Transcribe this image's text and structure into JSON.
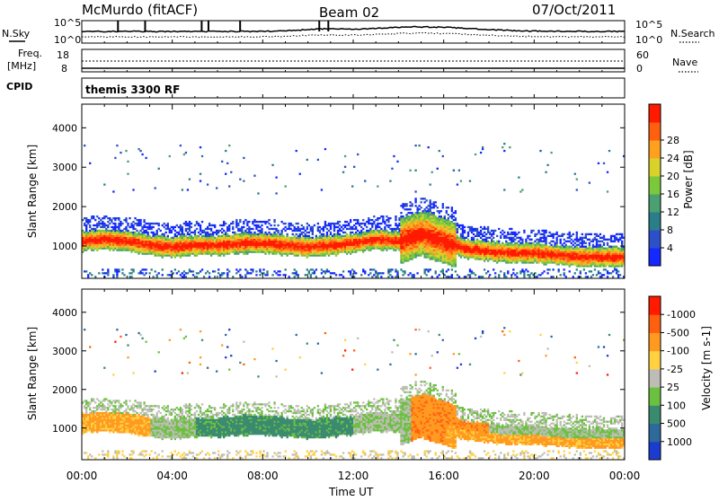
{
  "header": {
    "station": "McMurdo (fitACF)",
    "beam": "Beam 02",
    "date": "07/Oct/2011"
  },
  "aux": {
    "nsky_label": "N.Sky",
    "nsearch_label": "N.Search",
    "freq_label_1": "Freq.",
    "freq_label_2": "[MHz]",
    "cpid_label": "CPID",
    "nave_label": "Nave",
    "noise_ticks": [
      "10^5",
      "10^0"
    ],
    "noise_ticks_right": [
      "10^5",
      "10^0"
    ],
    "freq_ticks": [
      "18",
      "8"
    ],
    "nave_ticks": [
      "60",
      "0"
    ],
    "cpid_text": "themis 3300 RF"
  },
  "chart_data": [
    {
      "type": "heatmap",
      "title": "",
      "ylabel": "Slant Range [km]",
      "xlabel": "",
      "xlim": [
        0,
        24
      ],
      "ylim": [
        180,
        4600
      ],
      "y_ticks": [
        1000,
        2000,
        3000,
        4000
      ],
      "x_ticks": [
        0,
        4,
        8,
        12,
        16,
        20,
        24
      ],
      "colorbar": {
        "label": "Power [dB]",
        "ticks": [
          4,
          8,
          12,
          16,
          20,
          24,
          28
        ],
        "colors": [
          "#1428ff",
          "#2d50c8",
          "#2a7e8a",
          "#4aa070",
          "#7cc83c",
          "#d8d22a",
          "#ffa020",
          "#ff6010",
          "#ff1a00"
        ]
      },
      "main_band": [
        [
          0,
          1100
        ],
        [
          1,
          1150
        ],
        [
          2,
          1100
        ],
        [
          3,
          1000
        ],
        [
          4,
          950
        ],
        [
          5,
          1000
        ],
        [
          6,
          1000
        ],
        [
          7,
          1050
        ],
        [
          8,
          1050
        ],
        [
          9,
          1000
        ],
        [
          10,
          950
        ],
        [
          11,
          1000
        ],
        [
          12,
          1050
        ],
        [
          13,
          1150
        ],
        [
          14,
          1100
        ],
        [
          15,
          1300
        ],
        [
          16,
          1100
        ],
        [
          17,
          900
        ],
        [
          18,
          850
        ],
        [
          19,
          800
        ],
        [
          20,
          800
        ],
        [
          21,
          750
        ],
        [
          22,
          700
        ],
        [
          23,
          700
        ],
        [
          24,
          700
        ]
      ]
    },
    {
      "type": "heatmap",
      "title": "",
      "ylabel": "Slant Range [km]",
      "xlabel": "Time UT",
      "xlim": [
        0,
        24
      ],
      "ylim": [
        180,
        4600
      ],
      "y_ticks": [
        1000,
        2000,
        3000,
        4000
      ],
      "x_ticks": [
        0,
        4,
        8,
        12,
        16,
        20,
        24
      ],
      "x_ticklabels": [
        "00:00",
        "04:00",
        "08:00",
        "12:00",
        "16:00",
        "20:00",
        "00:00"
      ],
      "colorbar": {
        "label": "Velocity [m s-1]",
        "ticks": [
          "1000",
          "500",
          "100",
          "25",
          "-25",
          "-100",
          "-500",
          "-1000"
        ],
        "colors": [
          "#1c3cd0",
          "#2d6a9a",
          "#3a8a70",
          "#6cc040",
          "#bdbdb5",
          "#ffd040",
          "#ff9a20",
          "#ff6010",
          "#ff1a00"
        ]
      }
    }
  ]
}
